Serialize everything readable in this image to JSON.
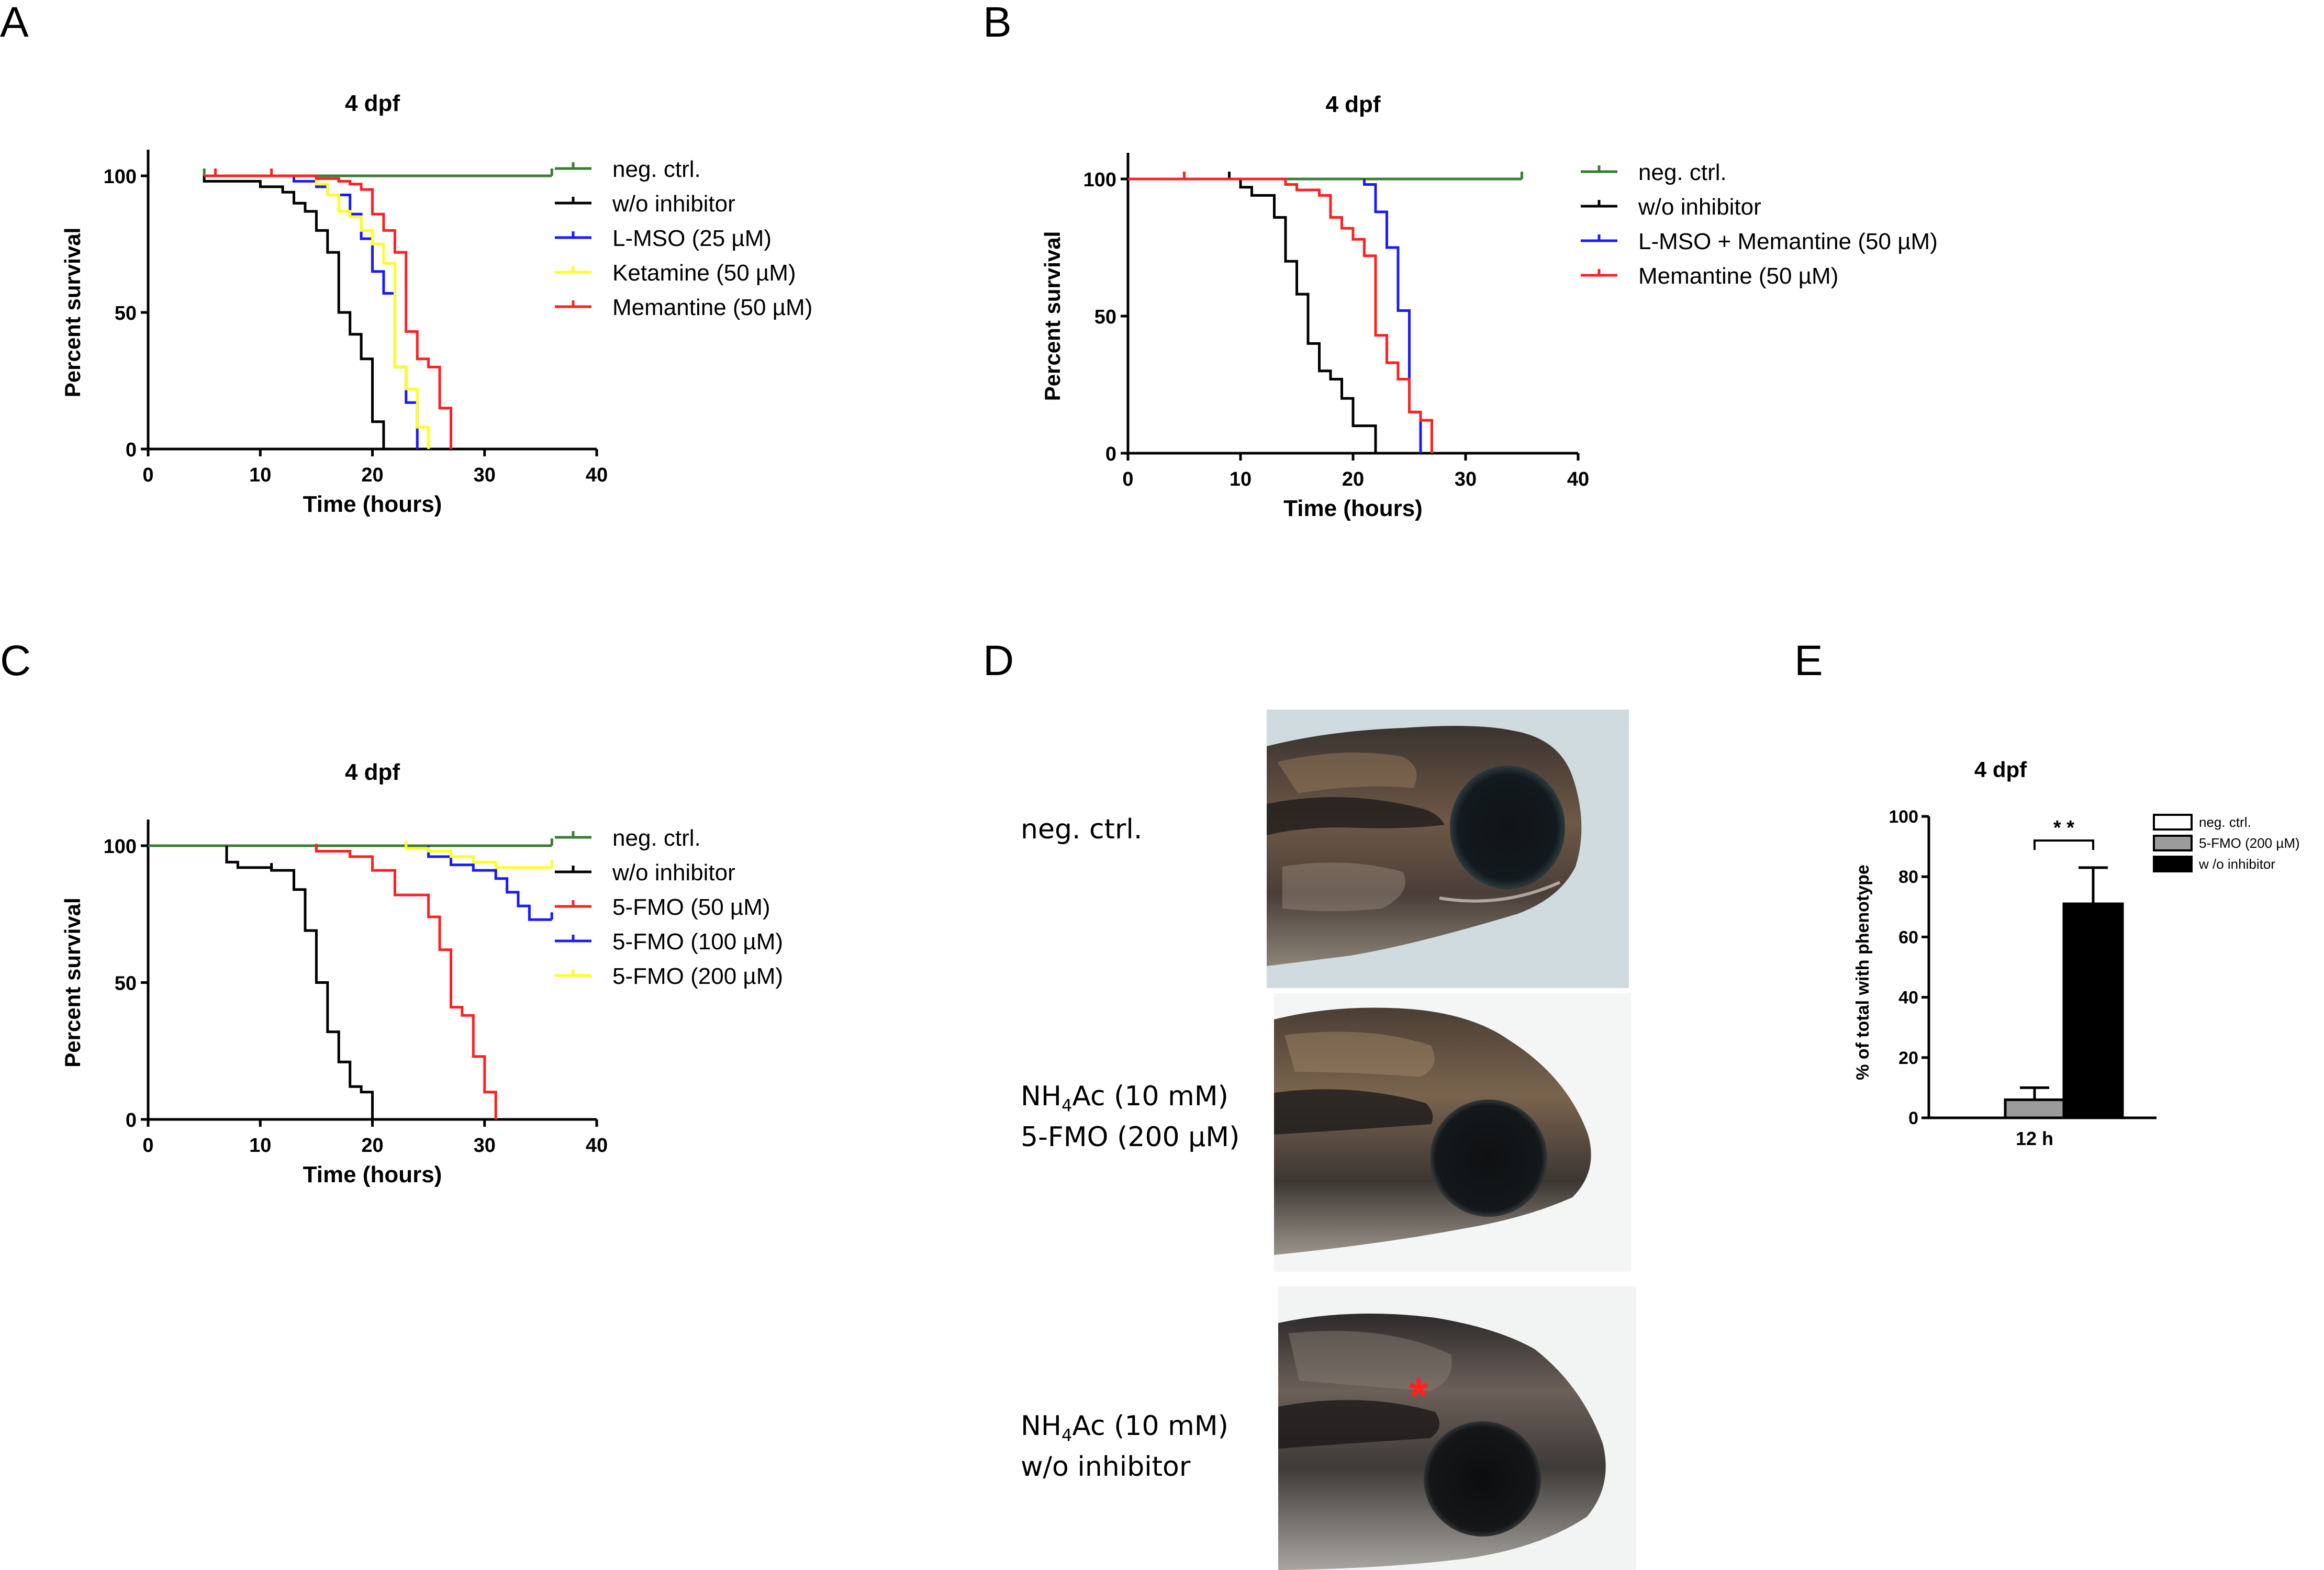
{
  "panels": {
    "A": "A",
    "B": "B",
    "C": "C",
    "D": "D",
    "E": "E"
  },
  "panel_d": {
    "labels": [
      {
        "lines": [
          "neg. ctrl."
        ]
      },
      {
        "lines": [
          "NH4Ac (10 mM)",
          "5-FMO (200 µM)"
        ]
      },
      {
        "lines": [
          "NH4Ac (10 mM)",
          "w/o inhibitor"
        ]
      }
    ],
    "asterisk": "*",
    "asterisk_color": "#ff2020"
  },
  "colors": {
    "neg_ctrl": "#3a7d32",
    "black": "#000000",
    "blue": "#1a1aff",
    "yellow": "#ffff20",
    "red": "#ff2020",
    "gray_bar": "#9b9b9b"
  },
  "chart_data": [
    {
      "id": "A",
      "type": "line",
      "title": "4 dpf",
      "xlabel": "Time (hours)",
      "ylabel": "Percent survival",
      "xlim": [
        0,
        40
      ],
      "ylim": [
        0,
        100
      ],
      "xticks": [
        0,
        10,
        20,
        30,
        40
      ],
      "yticks": [
        0,
        50,
        100
      ],
      "legend": "right",
      "series": [
        {
          "name": "neg. ctrl.",
          "color": "#3a7d32",
          "points": [
            [
              5,
              100
            ],
            [
              36,
              100
            ]
          ],
          "censor": [
            5,
            36
          ]
        },
        {
          "name": "w/o inhibitor",
          "color": "#000000",
          "points": [
            [
              5,
              100
            ],
            [
              5,
              98
            ],
            [
              10,
              98
            ],
            [
              10,
              96
            ],
            [
              12,
              96
            ],
            [
              12,
              94
            ],
            [
              13,
              94
            ],
            [
              13,
              90
            ],
            [
              14,
              90
            ],
            [
              14,
              87
            ],
            [
              15,
              87
            ],
            [
              15,
              80
            ],
            [
              16,
              80
            ],
            [
              16,
              72
            ],
            [
              17,
              72
            ],
            [
              17,
              50
            ],
            [
              18,
              50
            ],
            [
              18,
              42
            ],
            [
              19,
              42
            ],
            [
              19,
              33
            ],
            [
              20,
              33
            ],
            [
              20,
              10
            ],
            [
              21,
              10
            ],
            [
              21,
              0
            ]
          ]
        },
        {
          "name": "L-MSO (25 µM)",
          "color": "#1a1aff",
          "points": [
            [
              5,
              100
            ],
            [
              13,
              100
            ],
            [
              13,
              98
            ],
            [
              15,
              98
            ],
            [
              15,
              96
            ],
            [
              16,
              96
            ],
            [
              16,
              93
            ],
            [
              18,
              93
            ],
            [
              18,
              86
            ],
            [
              19,
              86
            ],
            [
              19,
              77
            ],
            [
              20,
              77
            ],
            [
              20,
              65
            ],
            [
              21,
              65
            ],
            [
              21,
              57
            ],
            [
              22,
              57
            ],
            [
              22,
              30
            ],
            [
              23,
              30
            ],
            [
              23,
              17
            ],
            [
              24,
              17
            ],
            [
              24,
              0
            ]
          ]
        },
        {
          "name": "Ketamine (50 µM)",
          "color": "#ffff20",
          "points": [
            [
              5,
              100
            ],
            [
              15,
              100
            ],
            [
              15,
              97
            ],
            [
              16,
              97
            ],
            [
              16,
              93
            ],
            [
              17,
              93
            ],
            [
              17,
              87
            ],
            [
              18,
              87
            ],
            [
              18,
              85
            ],
            [
              19,
              85
            ],
            [
              19,
              80
            ],
            [
              20,
              80
            ],
            [
              20,
              75
            ],
            [
              21,
              75
            ],
            [
              21,
              68
            ],
            [
              22,
              68
            ],
            [
              22,
              30
            ],
            [
              23,
              30
            ],
            [
              23,
              22
            ],
            [
              24,
              22
            ],
            [
              24,
              8
            ],
            [
              25,
              8
            ],
            [
              25,
              0
            ]
          ]
        },
        {
          "name": "Memantine (50 µM)",
          "color": "#ff2020",
          "points": [
            [
              5,
              100
            ],
            [
              15,
              100
            ],
            [
              15,
              99
            ],
            [
              17,
              99
            ],
            [
              17,
              98
            ],
            [
              18,
              98
            ],
            [
              18,
              97
            ],
            [
              19,
              97
            ],
            [
              19,
              95
            ],
            [
              20,
              95
            ],
            [
              20,
              86
            ],
            [
              21,
              86
            ],
            [
              21,
              80
            ],
            [
              22,
              80
            ],
            [
              22,
              72
            ],
            [
              23,
              72
            ],
            [
              23,
              43
            ],
            [
              24,
              43
            ],
            [
              24,
              33
            ],
            [
              25,
              33
            ],
            [
              25,
              30
            ],
            [
              26,
              30
            ],
            [
              26,
              15
            ],
            [
              27,
              15
            ],
            [
              27,
              0
            ]
          ],
          "censor": [
            6,
            11
          ]
        }
      ]
    },
    {
      "id": "B",
      "type": "line",
      "title": "4 dpf",
      "xlabel": "Time (hours)",
      "ylabel": "Percent survival",
      "xlim": [
        0,
        40
      ],
      "ylim": [
        0,
        100
      ],
      "xticks": [
        0,
        10,
        20,
        30,
        40
      ],
      "yticks": [
        0,
        50,
        100
      ],
      "legend": "right",
      "series": [
        {
          "name": "neg. ctrl.",
          "color": "#3a7d32",
          "points": [
            [
              5,
              100
            ],
            [
              35,
              100
            ]
          ],
          "censor": [
            5,
            35
          ]
        },
        {
          "name": "w/o inhibitor",
          "color": "#000000",
          "points": [
            [
              0,
              100
            ],
            [
              10,
              100
            ],
            [
              10,
              97
            ],
            [
              11,
              97
            ],
            [
              11,
              94
            ],
            [
              13,
              94
            ],
            [
              13,
              86
            ],
            [
              14,
              86
            ],
            [
              14,
              70
            ],
            [
              15,
              70
            ],
            [
              15,
              58
            ],
            [
              16,
              58
            ],
            [
              16,
              40
            ],
            [
              17,
              40
            ],
            [
              17,
              30
            ],
            [
              18,
              30
            ],
            [
              18,
              27
            ],
            [
              19,
              27
            ],
            [
              19,
              20
            ],
            [
              20,
              20
            ],
            [
              20,
              10
            ],
            [
              22,
              10
            ],
            [
              22,
              0
            ]
          ],
          "censor": [
            9
          ]
        },
        {
          "name": "L-MSO + Memantine (50 µM)",
          "color": "#1a1aff",
          "points": [
            [
              21,
              100
            ],
            [
              21,
              98
            ],
            [
              22,
              98
            ],
            [
              22,
              88
            ],
            [
              23,
              88
            ],
            [
              23,
              75
            ],
            [
              24,
              75
            ],
            [
              24,
              52
            ],
            [
              25,
              52
            ],
            [
              25,
              15
            ],
            [
              26,
              15
            ],
            [
              26,
              0
            ]
          ]
        },
        {
          "name": "Memantine (50 µM)",
          "color": "#ff2020",
          "points": [
            [
              0,
              100
            ],
            [
              14,
              100
            ],
            [
              14,
              98
            ],
            [
              15,
              98
            ],
            [
              15,
              96
            ],
            [
              17,
              96
            ],
            [
              17,
              94
            ],
            [
              18,
              94
            ],
            [
              18,
              86
            ],
            [
              19,
              86
            ],
            [
              19,
              82
            ],
            [
              20,
              82
            ],
            [
              20,
              78
            ],
            [
              21,
              78
            ],
            [
              21,
              72
            ],
            [
              22,
              72
            ],
            [
              22,
              43
            ],
            [
              23,
              43
            ],
            [
              23,
              33
            ],
            [
              24,
              33
            ],
            [
              24,
              27
            ],
            [
              25,
              27
            ],
            [
              25,
              15
            ],
            [
              26,
              15
            ],
            [
              26,
              12
            ],
            [
              27,
              12
            ],
            [
              27,
              0
            ]
          ],
          "censor": [
            5
          ]
        }
      ]
    },
    {
      "id": "C",
      "type": "line",
      "title": "4 dpf",
      "xlabel": "Time (hours)",
      "ylabel": "Percent survival",
      "xlim": [
        0,
        40
      ],
      "ylim": [
        0,
        100
      ],
      "xticks": [
        0,
        10,
        20,
        30,
        40
      ],
      "yticks": [
        0,
        50,
        100
      ],
      "legend": "right",
      "series": [
        {
          "name": "neg. ctrl.",
          "color": "#3a7d32",
          "points": [
            [
              0,
              100
            ],
            [
              36,
              100
            ]
          ],
          "censor": [
            36
          ]
        },
        {
          "name": "w/o inhibitor",
          "color": "#000000",
          "points": [
            [
              7,
              100
            ],
            [
              7,
              94
            ],
            [
              8,
              94
            ],
            [
              8,
              92
            ],
            [
              11,
              92
            ],
            [
              11,
              91
            ],
            [
              13,
              91
            ],
            [
              13,
              84
            ],
            [
              14,
              84
            ],
            [
              14,
              69
            ],
            [
              15,
              69
            ],
            [
              15,
              50
            ],
            [
              16,
              50
            ],
            [
              16,
              32
            ],
            [
              17,
              32
            ],
            [
              17,
              21
            ],
            [
              18,
              21
            ],
            [
              18,
              12
            ],
            [
              19,
              12
            ],
            [
              19,
              10
            ],
            [
              20,
              10
            ],
            [
              20,
              0
            ]
          ],
          "censor": [
            11
          ]
        },
        {
          "name": "5-FMO (50 µM)",
          "color": "#ff2020",
          "points": [
            [
              15,
              100
            ],
            [
              15,
              98
            ],
            [
              18,
              98
            ],
            [
              18,
              96
            ],
            [
              20,
              96
            ],
            [
              20,
              91
            ],
            [
              22,
              91
            ],
            [
              22,
              82
            ],
            [
              25,
              82
            ],
            [
              25,
              74
            ],
            [
              26,
              74
            ],
            [
              26,
              62
            ],
            [
              27,
              62
            ],
            [
              27,
              41
            ],
            [
              28,
              41
            ],
            [
              28,
              38
            ],
            [
              29,
              38
            ],
            [
              29,
              23
            ],
            [
              30,
              23
            ],
            [
              30,
              10
            ],
            [
              31,
              10
            ],
            [
              31,
              0
            ]
          ],
          "censor": [
            15
          ]
        },
        {
          "name": "5-FMO (100 µM)",
          "color": "#1a1aff",
          "points": [
            [
              25,
              100
            ],
            [
              25,
              96
            ],
            [
              27,
              96
            ],
            [
              27,
              93
            ],
            [
              29,
              93
            ],
            [
              29,
              91
            ],
            [
              31,
              91
            ],
            [
              31,
              88
            ],
            [
              32,
              88
            ],
            [
              32,
              83
            ],
            [
              33,
              83
            ],
            [
              33,
              78
            ],
            [
              34,
              78
            ],
            [
              34,
              73
            ],
            [
              36,
              73
            ]
          ],
          "censor": [
            25,
            36
          ]
        },
        {
          "name": "5-FMO (200 µM)",
          "color": "#ffff20",
          "points": [
            [
              23,
              100
            ],
            [
              23,
              99
            ],
            [
              25,
              99
            ],
            [
              25,
              98
            ],
            [
              27,
              98
            ],
            [
              27,
              96
            ],
            [
              29,
              96
            ],
            [
              29,
              94
            ],
            [
              31,
              94
            ],
            [
              31,
              92
            ],
            [
              36,
              92
            ]
          ],
          "censor": [
            23,
            36
          ]
        }
      ]
    },
    {
      "id": "E",
      "type": "bar",
      "title": "4 dpf",
      "xlabel": "",
      "ylabel": "% of total with phenotype",
      "categories": [
        "12 h"
      ],
      "ylim": [
        0,
        100
      ],
      "yticks": [
        0,
        20,
        40,
        60,
        80,
        100
      ],
      "legend": "top-right",
      "significance": "* *",
      "series": [
        {
          "name": "neg. ctrl.",
          "color": "#ffffff",
          "values": [
            0
          ],
          "error": [
            0
          ]
        },
        {
          "name": "5-FMO (200 µM)",
          "color": "#9b9b9b",
          "values": [
            6
          ],
          "error": [
            4
          ]
        },
        {
          "name": "w /o inhibitor",
          "color": "#000000",
          "values": [
            71
          ],
          "error": [
            12
          ]
        }
      ]
    }
  ]
}
